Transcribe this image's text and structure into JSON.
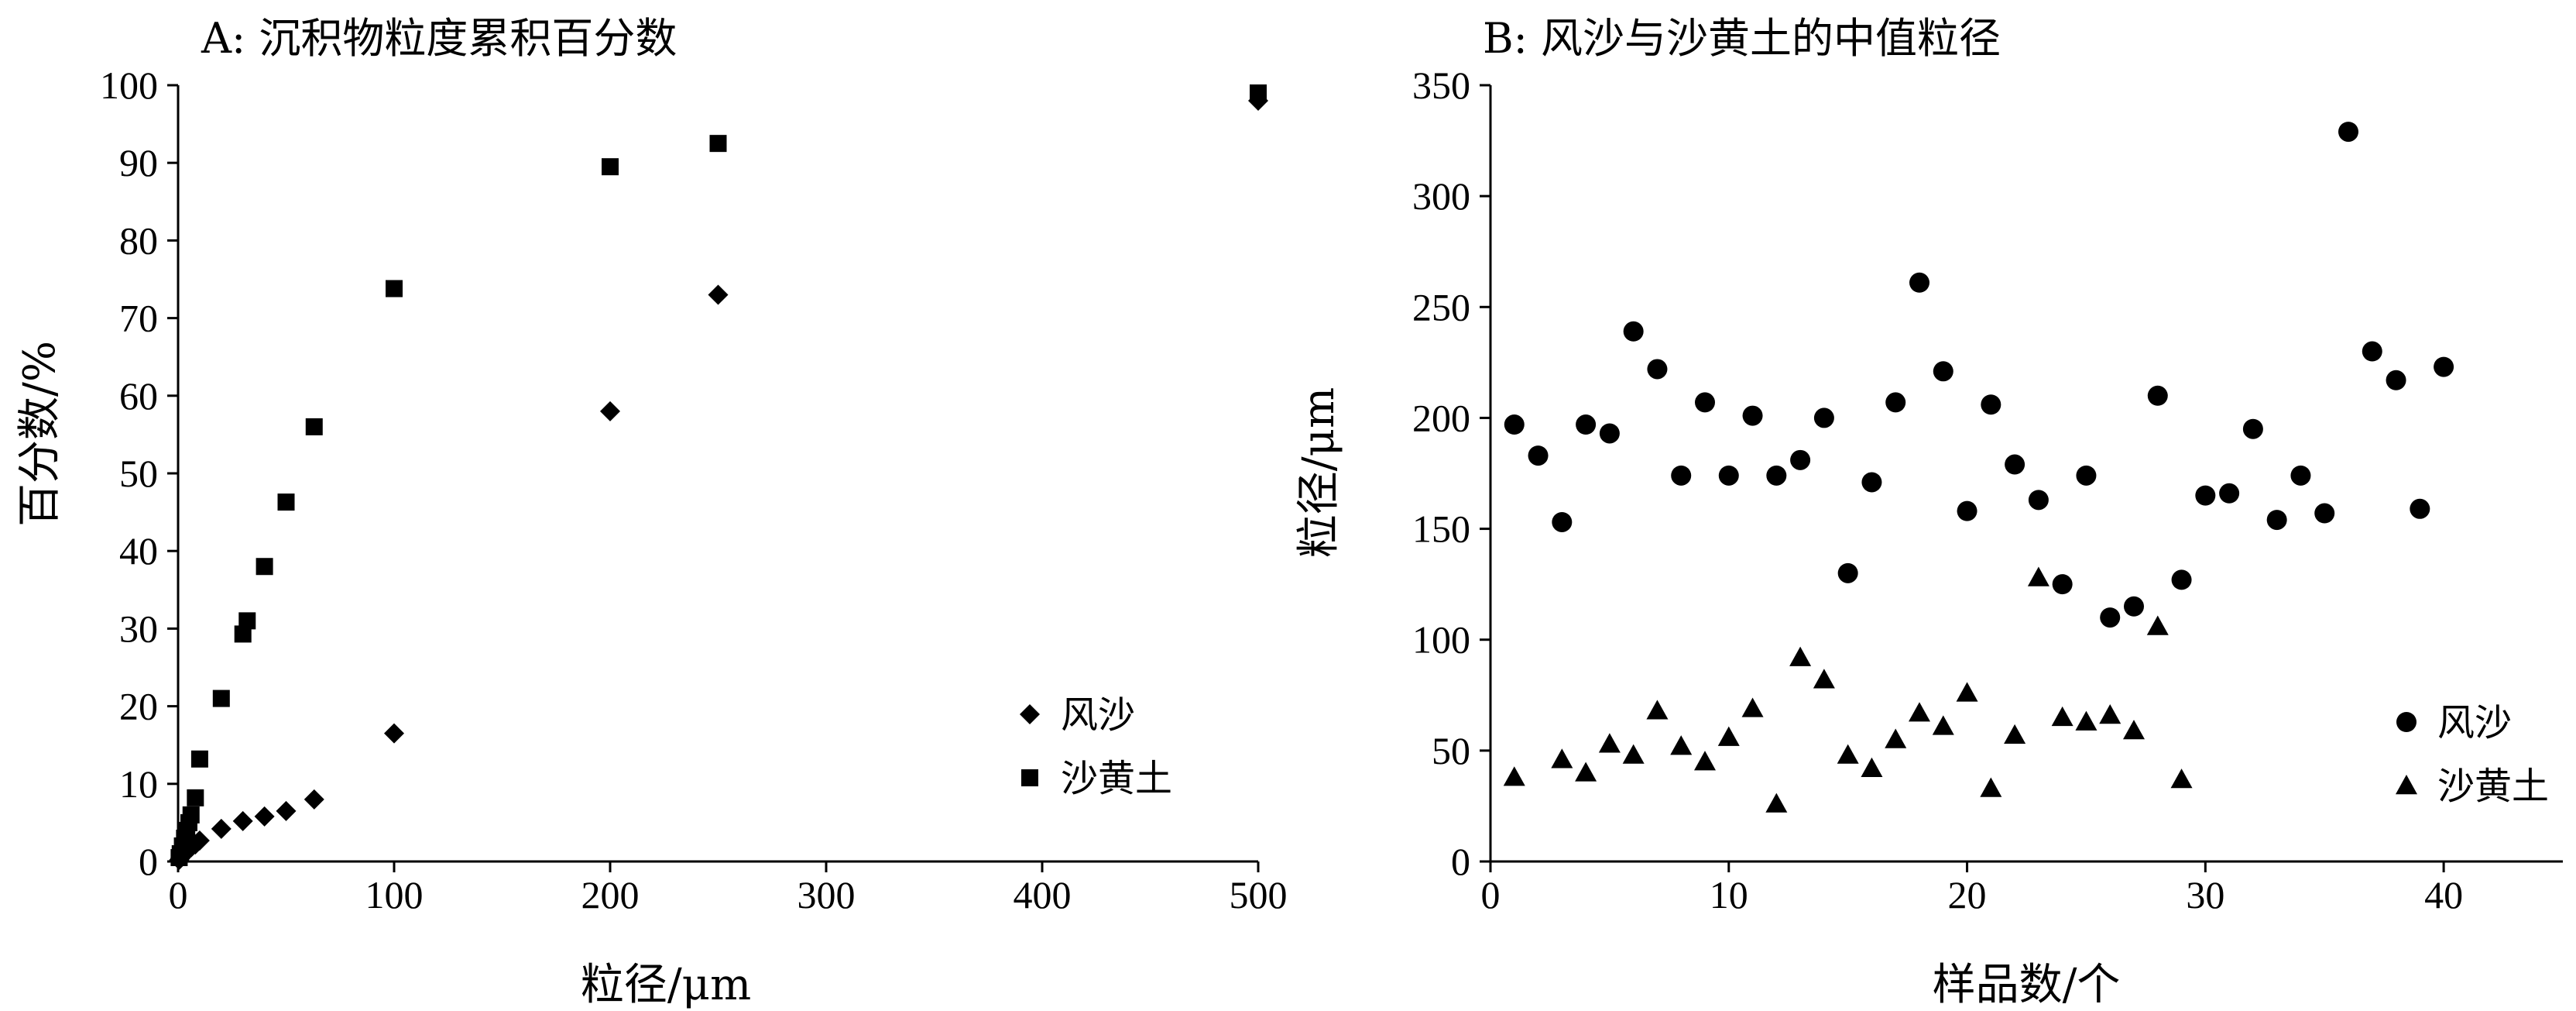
{
  "chart_data": [
    {
      "type": "scatter",
      "title": "A: 沉积物粒度累积百分数",
      "xlabel": "粒径/μm",
      "ylabel": "百分数/%",
      "xlim": [
        0,
        500
      ],
      "ylim": [
        0,
        100
      ],
      "xticks": [
        0,
        100,
        200,
        300,
        400,
        500
      ],
      "yticks": [
        0,
        10,
        20,
        30,
        40,
        50,
        60,
        70,
        80,
        90,
        100
      ],
      "grid": false,
      "legend_position": "bottom-right",
      "series": [
        {
          "name": "风沙",
          "marker": "diamond",
          "x": [
            0.5,
            1,
            2,
            3,
            4,
            5,
            6,
            8,
            10,
            20,
            30,
            40,
            50,
            63,
            100,
            200,
            250,
            500
          ],
          "y": [
            0.2,
            0.4,
            0.8,
            1.0,
            1.3,
            1.6,
            1.8,
            2.2,
            2.7,
            4.2,
            5.2,
            5.8,
            6.5,
            8.0,
            16.5,
            58.0,
            73.0,
            98.0
          ]
        },
        {
          "name": "沙黄土",
          "marker": "square",
          "x": [
            0.5,
            1,
            2,
            3,
            4,
            5,
            6,
            8,
            10,
            20,
            30,
            32,
            40,
            50,
            63,
            100,
            200,
            250,
            500
          ],
          "y": [
            0.5,
            1.0,
            2.0,
            3.0,
            4.0,
            5.0,
            6.0,
            8.2,
            13.2,
            21.0,
            29.3,
            31.0,
            38.0,
            46.3,
            56.0,
            73.8,
            89.5,
            92.5,
            99.0
          ]
        }
      ]
    },
    {
      "type": "scatter",
      "title": "B: 风沙与沙黄土的中值粒径",
      "xlabel": "样品数/个",
      "ylabel": "粒径/μm",
      "xlim": [
        0,
        45
      ],
      "ylim": [
        0,
        350
      ],
      "xticks": [
        0,
        10,
        20,
        30,
        40
      ],
      "yticks": [
        0,
        50,
        100,
        150,
        200,
        250,
        300,
        350
      ],
      "grid": false,
      "legend_position": "bottom-right",
      "series": [
        {
          "name": "风沙",
          "marker": "circle",
          "x": [
            1,
            2,
            3,
            4,
            5,
            6,
            7,
            8,
            9,
            10,
            11,
            12,
            13,
            14,
            15,
            16,
            17,
            18,
            19,
            20,
            21,
            22,
            23,
            24,
            25,
            26,
            27,
            28,
            29,
            30,
            31,
            32,
            33,
            34,
            35,
            36,
            37,
            38,
            39,
            40
          ],
          "y": [
            197,
            183,
            153,
            197,
            193,
            239,
            222,
            174,
            207,
            174,
            201,
            174,
            181,
            200,
            130,
            171,
            207,
            261,
            221,
            158,
            206,
            179,
            163,
            125,
            174,
            110,
            115,
            210,
            127,
            165,
            166,
            195,
            154,
            174,
            157,
            329,
            230,
            217,
            159,
            223
          ]
        },
        {
          "name": "沙黄土",
          "marker": "triangle",
          "x": [
            1,
            3,
            4,
            5,
            6,
            7,
            8,
            9,
            10,
            11,
            12,
            13,
            14,
            15,
            16,
            17,
            18,
            19,
            20,
            21,
            22,
            23,
            24,
            25,
            26,
            27,
            28,
            29
          ],
          "y": [
            38,
            46,
            40,
            53,
            48,
            68,
            52,
            45,
            56,
            69,
            26,
            92,
            82,
            48,
            42,
            55,
            67,
            61,
            76,
            33,
            57,
            128,
            65,
            63,
            66,
            59,
            106,
            37
          ]
        }
      ]
    }
  ]
}
